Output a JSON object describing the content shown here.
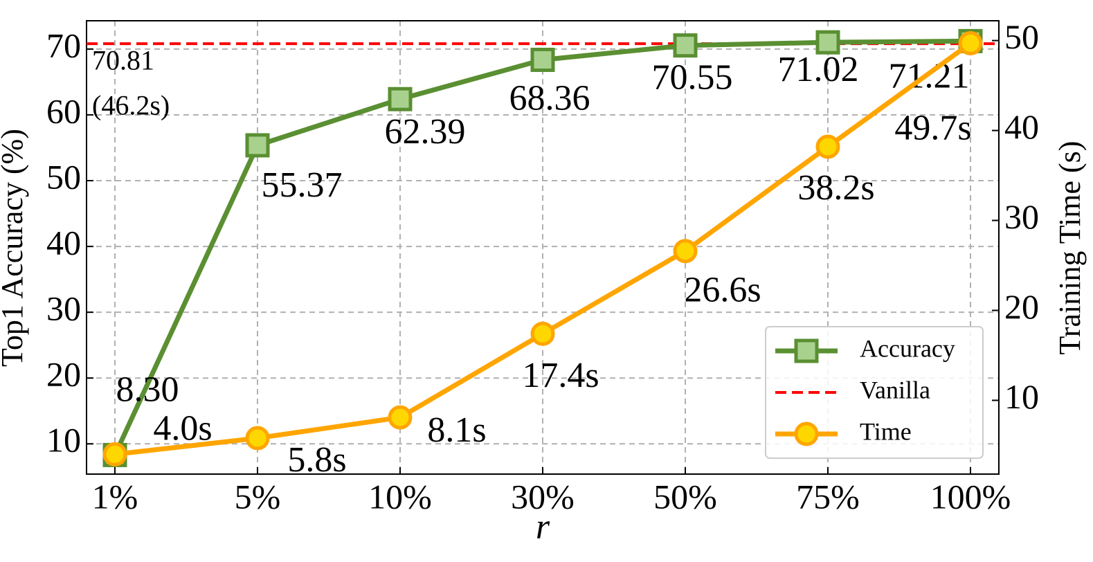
{
  "chart_data": {
    "type": "line",
    "x_label": "r",
    "y_label": "Top1 Accuracy (%)",
    "y2_label": "Training Time (s)",
    "categories": [
      "1%",
      "5%",
      "10%",
      "30%",
      "50%",
      "75%",
      "100%"
    ],
    "series": [
      {
        "name": "Accuracy",
        "color": "#5a8f32",
        "marker": "square",
        "marker_color": "#a9d18e",
        "values": [
          8.3,
          55.37,
          62.39,
          68.36,
          70.55,
          71.02,
          71.21
        ],
        "value_labels": [
          "8.30",
          "55.37",
          "62.39",
          "68.36",
          "70.55",
          "71.02",
          "71.21"
        ]
      },
      {
        "name": "Time",
        "color": "#ffa500",
        "marker": "circle",
        "marker_color": "#ffd700",
        "axis": "y2",
        "values": [
          4.0,
          5.8,
          8.1,
          17.4,
          26.6,
          38.2,
          49.7
        ],
        "value_labels": [
          "4.0s",
          "5.8s",
          "8.1s",
          "17.4s",
          "26.6s",
          "38.2s",
          "49.7s"
        ]
      }
    ],
    "reference_line": {
      "name": "Vanilla",
      "color": "#ff0000",
      "value": 70.81,
      "label": "70.81",
      "time": 46.2,
      "time_label": "(46.2s)"
    },
    "ylim": [
      5.4,
      74.3
    ],
    "yticks": [
      10,
      20,
      30,
      40,
      50,
      60,
      70
    ],
    "y2lim": [
      1.8,
      52.2
    ],
    "y2ticks": [
      10,
      20,
      30,
      40,
      50
    ],
    "grid": true,
    "legend": "lower right"
  }
}
